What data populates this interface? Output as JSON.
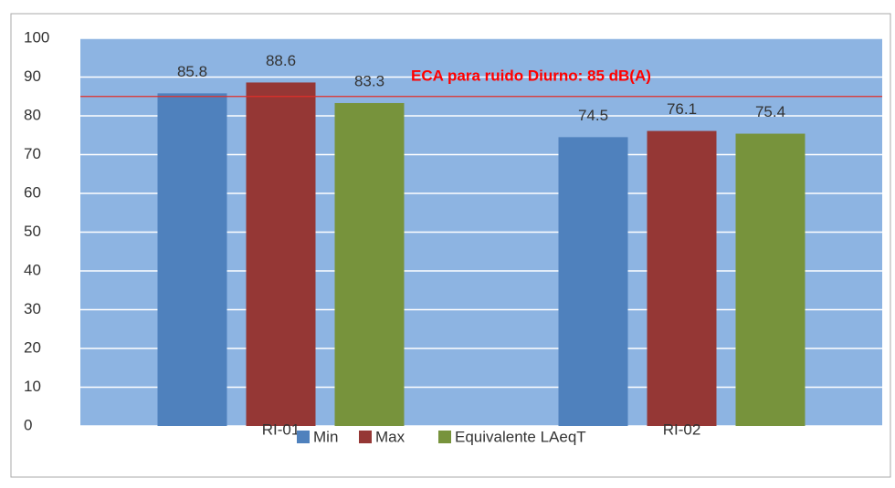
{
  "chart_data": {
    "type": "bar",
    "categories": [
      "RI-01",
      "RI-02"
    ],
    "series": [
      {
        "name": "Min",
        "color": "#4f81bd",
        "values": [
          85.8,
          74.5
        ]
      },
      {
        "name": "Max",
        "color": "#953735",
        "values": [
          88.6,
          76.1
        ]
      },
      {
        "name": "Equivalente LAeqT",
        "color": "#77933c",
        "values": [
          83.3,
          75.4
        ]
      }
    ],
    "ylim": [
      0,
      100
    ],
    "yticks": [
      0,
      10,
      20,
      30,
      40,
      50,
      60,
      70,
      80,
      90,
      100
    ],
    "grid": true,
    "reference": {
      "value": 85,
      "label": "ECA  para ruido Diurno: 85 dB(A)",
      "color": "#e0302a"
    },
    "legend": "bottom"
  }
}
